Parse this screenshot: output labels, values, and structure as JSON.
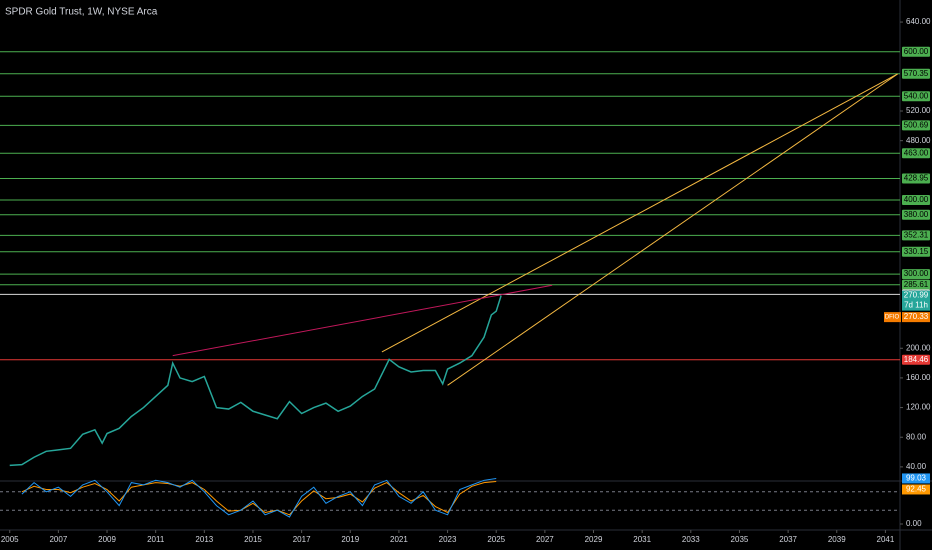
{
  "chart_data": {
    "type": "line",
    "title": "SPDR Gold Trust, 1W, NYSE Arca",
    "x": [
      2005,
      2005.5,
      2006,
      2006.5,
      2007,
      2007.5,
      2008,
      2008.5,
      2008.8,
      2009,
      2009.5,
      2010,
      2010.5,
      2011,
      2011.5,
      2011.7,
      2012,
      2012.5,
      2013,
      2013.5,
      2014,
      2014.5,
      2015,
      2015.5,
      2016,
      2016.5,
      2017,
      2017.5,
      2018,
      2018.5,
      2019,
      2019.5,
      2020,
      2020.6,
      2021,
      2021.5,
      2022,
      2022.5,
      2022.8,
      2023,
      2023.5,
      2024,
      2024.5,
      2024.8,
      2025,
      2025.2
    ],
    "values": [
      42,
      43,
      53,
      61,
      63,
      65,
      84,
      90,
      72,
      85,
      92,
      108,
      120,
      135,
      150,
      180,
      160,
      155,
      162,
      120,
      118,
      127,
      115,
      110,
      105,
      128,
      112,
      120,
      126,
      115,
      122,
      135,
      145,
      185,
      175,
      168,
      170,
      170,
      152,
      172,
      180,
      190,
      215,
      245,
      250,
      270.99
    ],
    "color": "#26a69a",
    "xlim": [
      2004.6,
      2041.6
    ],
    "xticks": [
      2005,
      2007,
      2009,
      2011,
      2013,
      2015,
      2017,
      2019,
      2021,
      2023,
      2025,
      2027,
      2029,
      2031,
      2033,
      2035,
      2037,
      2039,
      2041
    ],
    "ylim": [
      25,
      663
    ],
    "yticks": [
      {
        "value": 640,
        "label": "640.00"
      },
      {
        "value": 520,
        "label": "520.00"
      },
      {
        "value": 480,
        "label": "480.00"
      },
      {
        "value": 200,
        "label": "200.00"
      },
      {
        "value": 160,
        "label": "160.00"
      },
      {
        "value": 120,
        "label": "120.00"
      },
      {
        "value": 80,
        "label": "80.00"
      },
      {
        "value": 40,
        "label": "40.00"
      }
    ],
    "levels": [
      {
        "value": 600,
        "label": "600.00",
        "color": "#4caf50"
      },
      {
        "value": 570.35,
        "label": "570.35",
        "color": "#4caf50"
      },
      {
        "value": 540,
        "label": "540.00",
        "color": "#4caf50"
      },
      {
        "value": 500.69,
        "label": "500.69",
        "color": "#4caf50"
      },
      {
        "value": 463,
        "label": "463.00",
        "color": "#4caf50"
      },
      {
        "value": 428.95,
        "label": "428.95",
        "color": "#4caf50"
      },
      {
        "value": 400,
        "label": "400.00",
        "color": "#4caf50"
      },
      {
        "value": 380,
        "label": "380.00",
        "color": "#4caf50"
      },
      {
        "value": 352.31,
        "label": "352.31",
        "color": "#4caf50"
      },
      {
        "value": 330.15,
        "label": "330.15",
        "color": "#4caf50"
      },
      {
        "value": 300,
        "label": "300.00",
        "color": "#4caf50"
      },
      {
        "value": 285.61,
        "label": "285.61",
        "color": "#4caf50"
      },
      {
        "value": 272.69,
        "label": "272.69",
        "color": "#d9d9d9"
      },
      {
        "value": 184.46,
        "label": "184.46",
        "color": "#e53935"
      }
    ],
    "last_price": {
      "value": 270.99,
      "label": "270.99",
      "countdown": "7d 11h",
      "color": "#26a69a"
    },
    "marker": {
      "tag": "DFIO",
      "value": 270.33,
      "label": "270.33",
      "color": "#f57c00"
    },
    "trend_lines": [
      {
        "x": [
          2020.3,
          2041.5
        ],
        "y": [
          195,
          570
        ],
        "color": "#f5b942"
      },
      {
        "x": [
          2023,
          2041.5
        ],
        "y": [
          150,
          570
        ],
        "color": "#f5b942"
      },
      {
        "x": [
          2011.7,
          2027.3
        ],
        "y": [
          190,
          285
        ],
        "color": "#c2185b"
      }
    ],
    "rsi": {
      "x": [
        2005.5,
        2006,
        2006.5,
        2007,
        2007.5,
        2008,
        2008.5,
        2009,
        2009.5,
        2010,
        2010.5,
        2011,
        2011.5,
        2012,
        2012.5,
        2013,
        2013.5,
        2014,
        2014.5,
        2015,
        2015.5,
        2016,
        2016.5,
        2017,
        2017.5,
        2018,
        2018.5,
        2019,
        2019.5,
        2020,
        2020.5,
        2021,
        2021.5,
        2022,
        2022.5,
        2023,
        2023.5,
        2024,
        2024.5,
        2025
      ],
      "values": [
        65,
        90,
        70,
        80,
        60,
        85,
        95,
        70,
        40,
        90,
        85,
        95,
        90,
        80,
        95,
        70,
        40,
        20,
        30,
        50,
        20,
        30,
        15,
        60,
        80,
        45,
        60,
        70,
        40,
        85,
        95,
        60,
        45,
        70,
        30,
        20,
        75,
        85,
        95,
        99.03
      ],
      "signal": [
        70,
        82,
        75,
        75,
        68,
        80,
        88,
        75,
        50,
        80,
        85,
        90,
        88,
        82,
        90,
        75,
        50,
        28,
        30,
        45,
        25,
        30,
        20,
        50,
        72,
        55,
        58,
        65,
        48,
        78,
        90,
        68,
        50,
        62,
        38,
        25,
        65,
        82,
        90,
        92.45
      ],
      "color": "#2196f3",
      "signal_color": "#ff9800",
      "ylim": [
        0,
        100
      ],
      "yticks": [
        {
          "value": 0,
          "label": "0.00"
        }
      ],
      "levels": [
        70,
        30
      ],
      "last": {
        "value": 99.03,
        "label": "99.03"
      },
      "last_signal": {
        "value": 92.45,
        "label": "92.45"
      }
    }
  }
}
